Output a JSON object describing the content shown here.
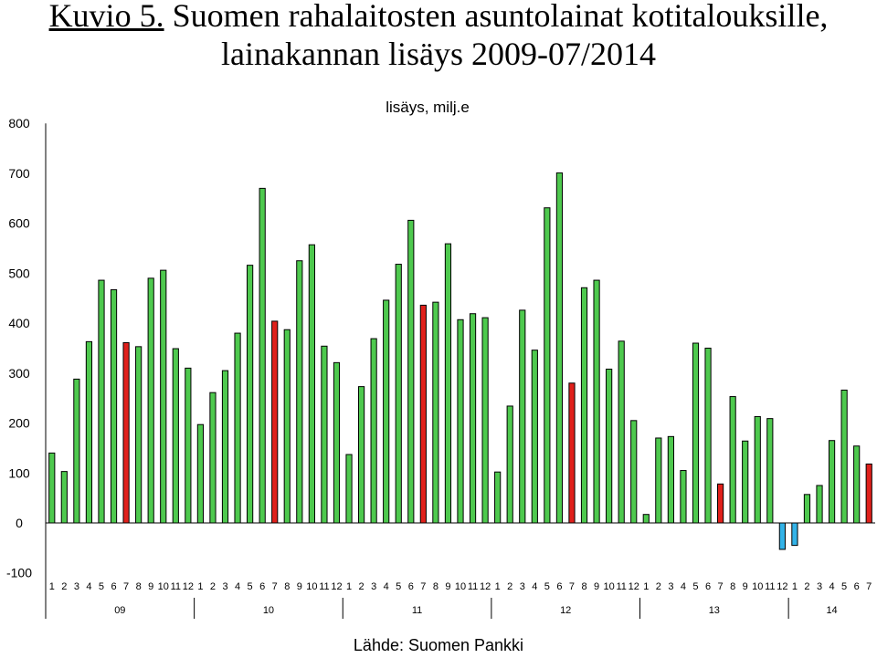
{
  "title": {
    "prefix": "Kuvio 5.",
    "line1": " Suomen rahalaitosten asuntolainat kotitalouksille,",
    "line2": "lainakannan lisäys 2009-07/2014"
  },
  "source": "Lähde: Suomen Pankki",
  "colors": {
    "normal": "#4ec94e",
    "july": "#e0201b",
    "negative": "#33b3e8",
    "outline": "#000000"
  },
  "chart_data": {
    "type": "bar",
    "title": "Kuvio 5. Suomen rahalaitosten asuntolainat kotitalouksille, lainakannan lisäys 2009-07/2014",
    "ylabel": "lisäys, milj.e",
    "ylim": [
      -100,
      800
    ],
    "yticks": [
      -100,
      0,
      100,
      200,
      300,
      400,
      500,
      600,
      700,
      800
    ],
    "grid": false,
    "years": [
      {
        "label": "09",
        "months": 12
      },
      {
        "label": "10",
        "months": 12
      },
      {
        "label": "11",
        "months": 12
      },
      {
        "label": "12",
        "months": 12
      },
      {
        "label": "13",
        "months": 12
      },
      {
        "label": "14",
        "months": 7
      }
    ],
    "categories": [
      "1",
      "2",
      "3",
      "4",
      "5",
      "6",
      "7",
      "8",
      "9",
      "10",
      "11",
      "12",
      "1",
      "2",
      "3",
      "4",
      "5",
      "6",
      "7",
      "8",
      "9",
      "10",
      "11",
      "12",
      "1",
      "2",
      "3",
      "4",
      "5",
      "6",
      "7",
      "8",
      "9",
      "10",
      "11",
      "12",
      "1",
      "2",
      "3",
      "4",
      "5",
      "6",
      "7",
      "8",
      "9",
      "10",
      "11",
      "12",
      "1",
      "2",
      "3",
      "4",
      "5",
      "6",
      "7",
      "8",
      "9",
      "10",
      "11",
      "12",
      "1",
      "2",
      "3",
      "4",
      "5",
      "6",
      "7"
    ],
    "values": [
      140,
      103,
      288,
      363,
      486,
      467,
      361,
      353,
      490,
      506,
      349,
      310,
      197,
      261,
      305,
      380,
      516,
      670,
      404,
      387,
      525,
      557,
      354,
      321,
      137,
      273,
      369,
      446,
      518,
      606,
      436,
      442,
      559,
      407,
      419,
      411,
      102,
      234,
      426,
      346,
      631,
      701,
      280,
      471,
      486,
      308,
      364,
      205,
      17,
      170,
      173,
      105,
      360,
      350,
      78,
      253,
      164,
      213,
      209,
      -53,
      -45,
      57,
      75,
      165,
      266,
      154,
      118
    ],
    "highlight": "July bars are red; negative bars are blue"
  }
}
